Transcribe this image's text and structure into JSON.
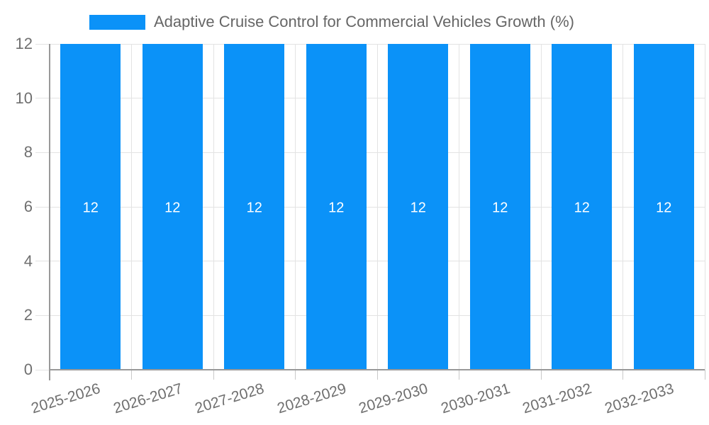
{
  "chart_data": {
    "type": "bar",
    "title": "Adaptive Cruise Control for Commercial Vehicles Growth (%)",
    "legend_label": "Adaptive Cruise Control for Commercial Vehicles Growth (%)",
    "legend_position": "top",
    "categories": [
      "2025-2026",
      "2026-2027",
      "2027-2028",
      "2028-2029",
      "2029-2030",
      "2030-2031",
      "2031-2032",
      "2032-2033"
    ],
    "values": [
      12,
      12,
      12,
      12,
      12,
      12,
      12,
      12
    ],
    "xlabel": "",
    "ylabel": "",
    "ylim": [
      0,
      12
    ],
    "ytick_step": 2,
    "ytick_labels": [
      "0",
      "2",
      "4",
      "6",
      "8",
      "10",
      "12"
    ],
    "grid": true,
    "colors": {
      "bar": "#0b92f8",
      "bar_label_text": "#ffffff",
      "legend_text": "#666666",
      "axis_tick_text": "#6f6f6f",
      "gridline": "#e3e3e3",
      "axis_line": "#999999",
      "background": "#ffffff"
    }
  }
}
